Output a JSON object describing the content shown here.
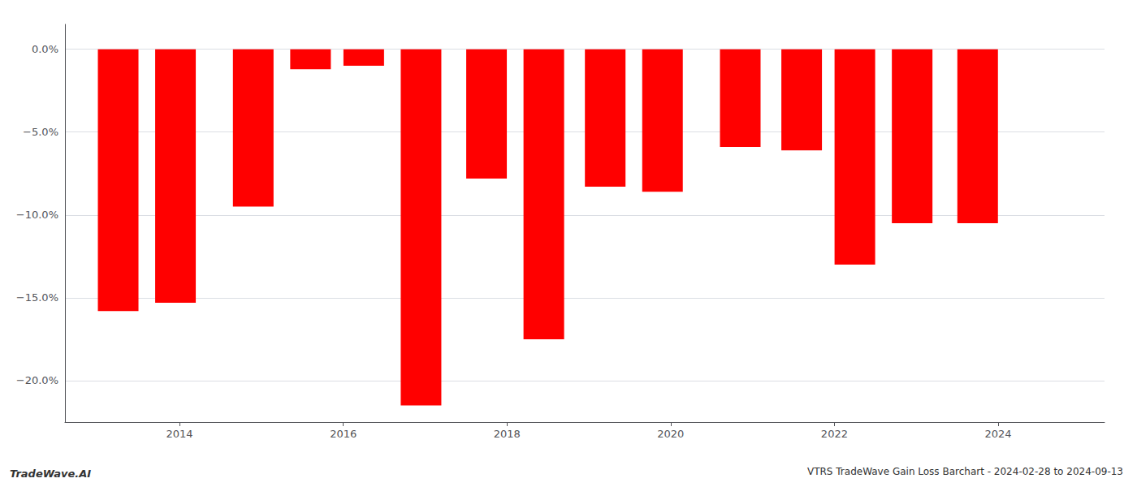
{
  "chart_data": {
    "type": "bar",
    "title": "VTRS TradeWave Gain Loss Barchart - 2024-02-28 to 2024-09-13",
    "annotations": [
      "TradeWave.AI"
    ],
    "x": [
      2013.25,
      2013.95,
      2014.9,
      2015.6,
      2016.25,
      2016.95,
      2017.75,
      2018.45,
      2019.2,
      2019.9,
      2020.85,
      2021.6,
      2022.25,
      2022.95,
      2023.75
    ],
    "values": [
      -15.8,
      -15.3,
      -9.5,
      -1.2,
      -1.0,
      -21.5,
      -7.8,
      -17.5,
      -8.3,
      -8.6,
      -5.9,
      -6.1,
      -13.0,
      -10.5,
      -10.5
    ],
    "color": "#ff0000",
    "xlim": [
      2012.6,
      2025.3
    ],
    "xticks": [
      2014,
      2016,
      2018,
      2020,
      2022,
      2024
    ],
    "ylim": [
      -22.5,
      1.5
    ],
    "yticks": [
      {
        "value": 0.0,
        "label": "0.0%"
      },
      {
        "value": -5.0,
        "label": "−5.0%"
      },
      {
        "value": -10.0,
        "label": "−10.0%"
      },
      {
        "value": -15.0,
        "label": "−15.0%"
      },
      {
        "value": -20.0,
        "label": "−20.0%"
      }
    ],
    "grid": true
  }
}
